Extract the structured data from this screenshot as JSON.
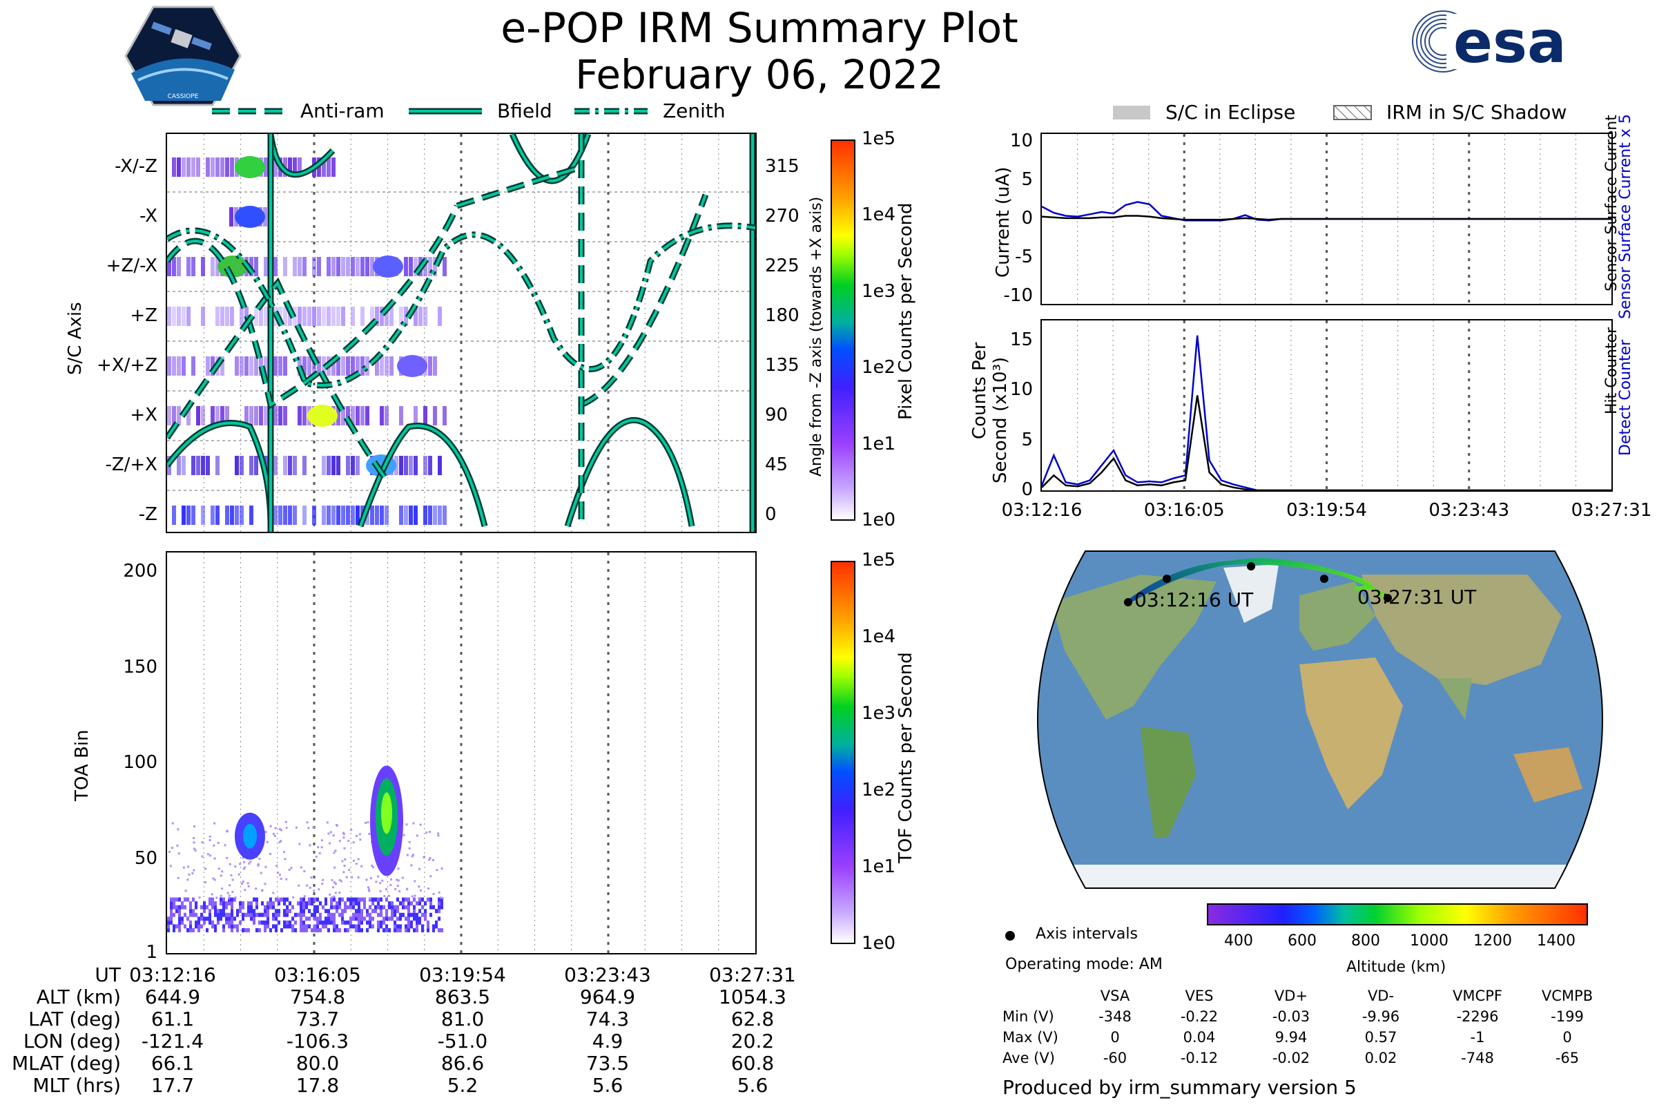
{
  "title": "e-POP IRM Summary Plot",
  "date": "February 06, 2022",
  "logos": {
    "left": "CASSIOPE",
    "right": "esa"
  },
  "pointing_legend": [
    "Anti-ram",
    "Bfield",
    "Zenith"
  ],
  "eclipse_legend": [
    "S/C in Eclipse",
    "IRM in S/C Shadow"
  ],
  "colors": {
    "accent": "#00c8a0",
    "sensor_current": "#0000cc",
    "map_track_start": "#1040a0",
    "map_track_end": "#60e020"
  },
  "chart_data": [
    {
      "id": "sc_axis",
      "type": "heatmap",
      "ylabel": "S/C Axis",
      "ylabel_right": "Angle from -Z axis (towards +X axis)",
      "yticks_left": [
        "-X/-Z",
        "-X",
        "+Z/-X",
        "+Z",
        "+X/+Z",
        "+X",
        "-Z/+X",
        "-Z"
      ],
      "yticks_right": [
        315,
        270,
        225,
        180,
        135,
        90,
        45,
        0
      ],
      "ylim": [
        -15,
        345
      ],
      "colorbar": {
        "label": "Pixel Counts per Second",
        "ticks": [
          "1e0",
          "1e1",
          "1e2",
          "1e3",
          "1e4",
          "1e5"
        ]
      }
    },
    {
      "id": "toa",
      "type": "heatmap",
      "ylabel": "TOA Bin",
      "yticks": [
        1,
        50,
        100,
        150,
        200
      ],
      "ylim": [
        1,
        210
      ],
      "colorbar": {
        "label": "TOF Counts per Second",
        "ticks": [
          "1e0",
          "1e1",
          "1e2",
          "1e3",
          "1e4",
          "1e5"
        ]
      }
    },
    {
      "id": "current",
      "type": "line",
      "ylabel": "Current (uA)",
      "right_labels": [
        "Sensor Surface Current x 5",
        "Sensor Surface Current"
      ],
      "yticks": [
        10,
        5,
        0,
        -5,
        -10
      ],
      "ylim": [
        -11,
        11
      ],
      "series": [
        {
          "name": "Sensor Surface Current x 5",
          "values": [
            1.6,
            0.8,
            0.4,
            0.3,
            0.6,
            0.9,
            0.7,
            1.8,
            2.2,
            1.9,
            0.4,
            0.1,
            -0.2,
            -0.2,
            -0.2,
            -0.2,
            0.0,
            0.5,
            -0.1,
            -0.2,
            0.0
          ]
        },
        {
          "name": "Sensor Surface Current",
          "values": [
            0.3,
            0.2,
            0.1,
            0.1,
            0.1,
            0.2,
            0.2,
            0.4,
            0.4,
            0.3,
            0.1,
            0.0,
            -0.1,
            -0.1,
            -0.1,
            -0.1,
            0.0,
            0.1,
            0.0,
            -0.1,
            0.0
          ]
        }
      ]
    },
    {
      "id": "counts",
      "type": "line",
      "ylabel": "Counts Per",
      "ylabel2": "Second (x10³)",
      "right_labels": [
        "Detect Counter",
        "Hit Counter"
      ],
      "yticks": [
        15,
        10,
        5,
        0
      ],
      "ylim": [
        0,
        17
      ],
      "series": [
        {
          "name": "Detect Counter",
          "values": [
            0.5,
            3.5,
            0.8,
            0.6,
            1.0,
            2.5,
            4.0,
            1.5,
            0.8,
            0.9,
            0.8,
            1.2,
            1.5,
            15.5,
            3.0,
            1.0,
            0.6,
            0.3,
            0.0,
            0.0,
            0.0
          ]
        },
        {
          "name": "Hit Counter",
          "values": [
            0.3,
            1.5,
            0.5,
            0.4,
            0.7,
            1.8,
            3.2,
            1.0,
            0.5,
            0.6,
            0.5,
            0.8,
            1.0,
            9.5,
            1.8,
            0.6,
            0.3,
            0.1,
            0.0,
            0.0,
            0.0
          ]
        }
      ]
    }
  ],
  "time_ticks": [
    "03:12:16",
    "03:16:05",
    "03:19:54",
    "03:23:43",
    "03:27:31"
  ],
  "map": {
    "start_label": "03:12:16 UT",
    "end_label": "03:27:31 UT",
    "legend_axis": "Axis intervals",
    "colorbar_label": "Altitude (km)",
    "colorbar_ticks": [
      400,
      600,
      800,
      1000,
      1200,
      1400
    ]
  },
  "ephemeris": {
    "rows": [
      {
        "label": "UT",
        "values": [
          "03:12:16",
          "03:16:05",
          "03:19:54",
          "03:23:43",
          "03:27:31"
        ]
      },
      {
        "label": "ALT (km)",
        "values": [
          "644.9",
          "754.8",
          "863.5",
          "964.9",
          "1054.3"
        ]
      },
      {
        "label": "LAT (deg)",
        "values": [
          "61.1",
          "73.7",
          "81.0",
          "74.3",
          "62.8"
        ]
      },
      {
        "label": "LON (deg)",
        "values": [
          "-121.4",
          "-106.3",
          "-51.0",
          "4.9",
          "20.2"
        ]
      },
      {
        "label": "MLAT (deg)",
        "values": [
          "66.1",
          "80.0",
          "86.6",
          "73.5",
          "60.8"
        ]
      },
      {
        "label": "MLT (hrs)",
        "values": [
          "17.7",
          "17.8",
          "5.2",
          "5.6",
          "5.6"
        ]
      }
    ]
  },
  "operating_mode": "Operating mode: AM",
  "voltage_table": {
    "headers": [
      "VSA",
      "VES",
      "VD+",
      "VD-",
      "VMCPF",
      "VCMPB"
    ],
    "rows": [
      {
        "label": "Min (V)",
        "values": [
          "-348",
          "-0.22",
          "-0.03",
          "-9.96",
          "-2296",
          "-199"
        ]
      },
      {
        "label": "Max (V)",
        "values": [
          "0",
          "0.04",
          "9.94",
          "0.57",
          "-1",
          "0"
        ]
      },
      {
        "label": "Ave (V)",
        "values": [
          "-60",
          "-0.12",
          "-0.02",
          "0.02",
          "-748",
          "-65"
        ]
      }
    ]
  },
  "footer": "Produced by irm_summary version 5"
}
